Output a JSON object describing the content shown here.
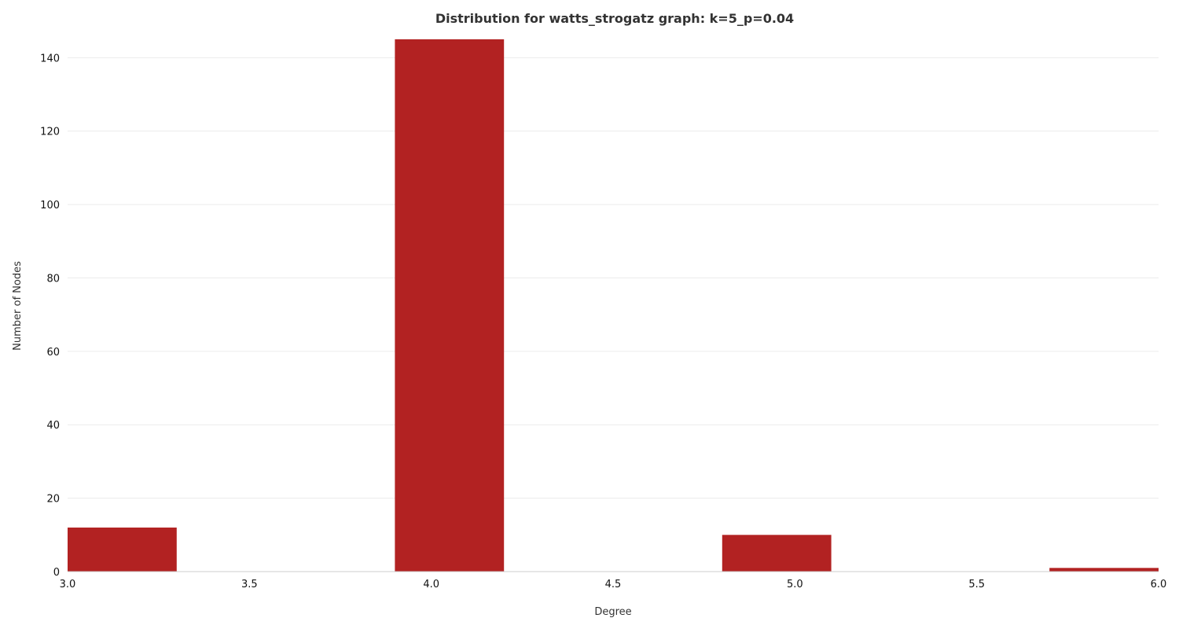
{
  "chart_data": {
    "type": "bar",
    "title": "Distribution for watts_strogatz graph: k=5_p=0.04",
    "xlabel": "Degree",
    "ylabel": "Number of Nodes",
    "bar_color": "#b22222",
    "grid": "horizontal",
    "xlim": [
      3.0,
      6.0
    ],
    "ylim": [
      0,
      145
    ],
    "x_ticks": [
      "3.0",
      "3.5",
      "4.0",
      "4.5",
      "5.0",
      "5.5",
      "6.0"
    ],
    "y_ticks": [
      "0",
      "20",
      "40",
      "60",
      "80",
      "100",
      "120",
      "140"
    ],
    "bins": [
      {
        "start": 3.0,
        "end": 3.3,
        "value": 12
      },
      {
        "start": 3.3,
        "end": 3.6,
        "value": 0
      },
      {
        "start": 3.6,
        "end": 3.9,
        "value": 0
      },
      {
        "start": 3.9,
        "end": 4.2,
        "value": 145
      },
      {
        "start": 4.2,
        "end": 4.5,
        "value": 0
      },
      {
        "start": 4.5,
        "end": 4.8,
        "value": 0
      },
      {
        "start": 4.8,
        "end": 5.1,
        "value": 10
      },
      {
        "start": 5.1,
        "end": 5.4,
        "value": 0
      },
      {
        "start": 5.4,
        "end": 5.7,
        "value": 0
      },
      {
        "start": 5.7,
        "end": 6.0,
        "value": 1
      }
    ]
  }
}
